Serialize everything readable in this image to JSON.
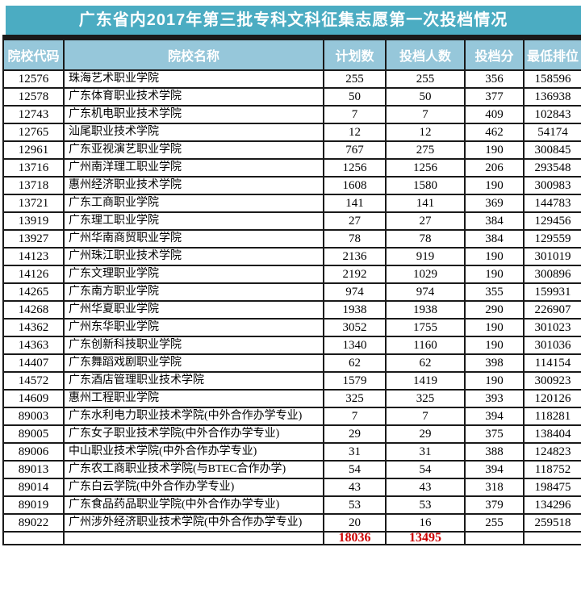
{
  "page": {
    "title": "广东省内2017年第三批专科文科征集志愿第一次投档情况"
  },
  "colors": {
    "title_bg": "#4bacc2",
    "header_bg": "#96c7da",
    "border": "#1a1a1a",
    "total_red": "#cc0000"
  },
  "chart_data": {
    "type": "table",
    "title": "广东省内2017年第三批专科文科征集志愿第一次投档情况",
    "columns": [
      "院校代码",
      "院校名称",
      "计划数",
      "投档人数",
      "投档分",
      "最低排位"
    ],
    "rows": [
      [
        "12576",
        "珠海艺术职业学院",
        "255",
        "255",
        "356",
        "158596"
      ],
      [
        "12578",
        "广东体育职业技术学院",
        "50",
        "50",
        "377",
        "136938"
      ],
      [
        "12743",
        "广东机电职业技术学院",
        "7",
        "7",
        "409",
        "102843"
      ],
      [
        "12765",
        "汕尾职业技术学院",
        "12",
        "12",
        "462",
        "54174"
      ],
      [
        "12961",
        "广东亚视演艺职业学院",
        "767",
        "275",
        "190",
        "300845"
      ],
      [
        "13716",
        "广州南洋理工职业学院",
        "1256",
        "1256",
        "206",
        "293548"
      ],
      [
        "13718",
        "惠州经济职业技术学院",
        "1608",
        "1580",
        "190",
        "300983"
      ],
      [
        "13721",
        "广东工商职业学院",
        "141",
        "141",
        "369",
        "144783"
      ],
      [
        "13919",
        "广东理工职业学院",
        "27",
        "27",
        "384",
        "129456"
      ],
      [
        "13927",
        "广州华南商贸职业学院",
        "78",
        "78",
        "384",
        "129559"
      ],
      [
        "14123",
        "广州珠江职业技术学院",
        "2136",
        "919",
        "190",
        "301019"
      ],
      [
        "14126",
        "广东文理职业学院",
        "2192",
        "1029",
        "190",
        "300896"
      ],
      [
        "14265",
        "广东南方职业学院",
        "974",
        "974",
        "355",
        "159931"
      ],
      [
        "14268",
        "广州华夏职业学院",
        "1938",
        "1938",
        "290",
        "226907"
      ],
      [
        "14362",
        "广州东华职业学院",
        "3052",
        "1755",
        "190",
        "301023"
      ],
      [
        "14363",
        "广东创新科技职业学院",
        "1340",
        "1160",
        "190",
        "301036"
      ],
      [
        "14407",
        "广东舞蹈戏剧职业学院",
        "62",
        "62",
        "398",
        "114154"
      ],
      [
        "14572",
        "广东酒店管理职业技术学院",
        "1579",
        "1419",
        "190",
        "300923"
      ],
      [
        "14609",
        "惠州工程职业学院",
        "325",
        "325",
        "393",
        "120126"
      ],
      [
        "89003",
        "广东水利电力职业技术学院(中外合作办学专业)",
        "7",
        "7",
        "394",
        "118281"
      ],
      [
        "89005",
        "广东女子职业技术学院(中外合作办学专业)",
        "29",
        "29",
        "375",
        "138404"
      ],
      [
        "89006",
        "中山职业技术学院(中外合作办学专业)",
        "31",
        "31",
        "388",
        "124823"
      ],
      [
        "89013",
        "广东农工商职业技术学院(与BTEC合作办学)",
        "54",
        "54",
        "394",
        "118752"
      ],
      [
        "89014",
        "广东白云学院(中外合作办学专业)",
        "43",
        "43",
        "318",
        "198475"
      ],
      [
        "89019",
        "广东食品药品职业学院(中外合作办学专业)",
        "53",
        "53",
        "379",
        "134296"
      ],
      [
        "89022",
        "广州涉外经济职业技术学院(中外合作办学专业)",
        "20",
        "16",
        "255",
        "259518"
      ]
    ],
    "totals_row": [
      "",
      "",
      "18036",
      "13495",
      "",
      ""
    ],
    "layout": {
      "grid": "on",
      "header_text_color": "#ffffff",
      "body_text_color": "#000000"
    }
  }
}
